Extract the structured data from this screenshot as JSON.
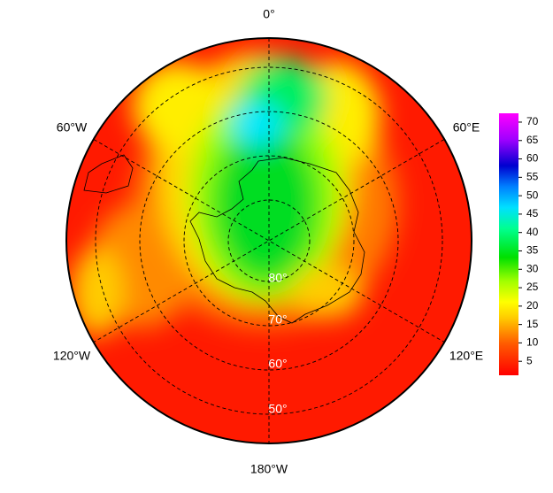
{
  "map": {
    "longitude_labels": [
      "0°",
      "60°E",
      "120°E",
      "180°W",
      "120°W",
      "60°W"
    ],
    "latitude_labels": [
      "80°",
      "70°",
      "60°",
      "50°"
    ],
    "colorbar": {
      "range": [
        1.2,
        72.4
      ],
      "ticks": [
        5,
        10,
        15,
        20,
        25,
        30,
        35,
        40,
        45,
        50,
        55,
        60,
        65,
        70
      ]
    }
  }
}
